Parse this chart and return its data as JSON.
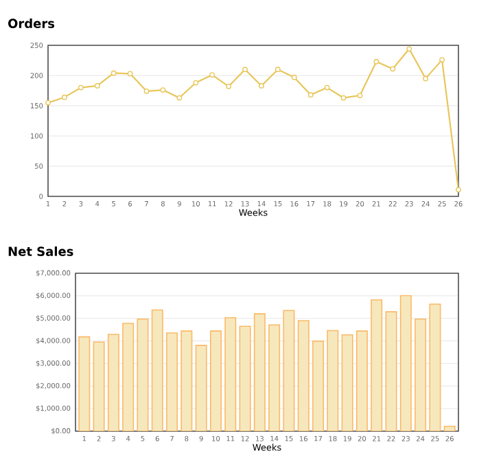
{
  "chart_data": [
    {
      "type": "line",
      "title": "Orders",
      "xlabel": "Weeks",
      "categories": [
        "1",
        "2",
        "3",
        "4",
        "5",
        "6",
        "7",
        "8",
        "9",
        "10",
        "11",
        "12",
        "13",
        "14",
        "15",
        "16",
        "17",
        "18",
        "19",
        "20",
        "21",
        "22",
        "23",
        "24",
        "25",
        "26"
      ],
      "values": [
        155,
        164,
        180,
        183,
        204,
        203,
        174,
        176,
        163,
        188,
        201,
        182,
        210,
        183,
        210,
        197,
        168,
        180,
        163,
        167,
        223,
        211,
        244,
        195,
        226,
        11
      ],
      "color": "#e8c65a",
      "marker": "circle",
      "ylim": [
        0,
        250
      ],
      "yticks": [
        0,
        50,
        100,
        150,
        200,
        250
      ],
      "grid": "y"
    },
    {
      "type": "bar",
      "title": "Net Sales",
      "xlabel": "Weeks",
      "categories": [
        "1",
        "2",
        "3",
        "4",
        "5",
        "6",
        "7",
        "8",
        "9",
        "10",
        "11",
        "12",
        "13",
        "14",
        "15",
        "16",
        "17",
        "18",
        "19",
        "20",
        "21",
        "22",
        "23",
        "24",
        "25",
        "26"
      ],
      "values": [
        4180,
        3950,
        4290,
        4780,
        4970,
        5370,
        4350,
        4440,
        3800,
        4440,
        5030,
        4650,
        5200,
        4710,
        5350,
        4900,
        3990,
        4460,
        4270,
        4440,
        5820,
        5290,
        6010,
        4970,
        5630,
        210
      ],
      "color": "#f6e8bc",
      "ylim": [
        0,
        7000
      ],
      "yticks": [
        {
          "value": 0,
          "label": "$0.00"
        },
        {
          "value": 1000,
          "label": "$1,000.00"
        },
        {
          "value": 2000,
          "label": "$2,000.00"
        },
        {
          "value": 3000,
          "label": "$3,000.00"
        },
        {
          "value": 4000,
          "label": "$4,000.00"
        },
        {
          "value": 5000,
          "label": "$5,000.00"
        },
        {
          "value": 6000,
          "label": "$6,000.00"
        },
        {
          "value": 7000,
          "label": "$7,000.00"
        }
      ],
      "grid": "y"
    }
  ]
}
